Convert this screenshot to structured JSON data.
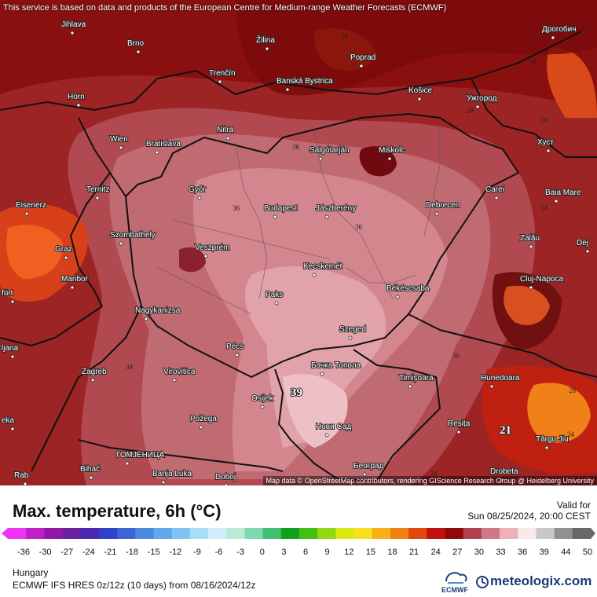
{
  "map": {
    "notice": "This service is based on data and products of the European Centre for Medium-range Weather Forecasts (ECMWF)",
    "attribution": "Map data © OpenStreetMap contributors, rendering GIScience Research Group @ Heidelberg University",
    "cities": [
      "Jihlava",
      "Brno",
      "Žilina",
      "Poprad",
      "Дрогобич",
      "Trenčín",
      "Banská Bystrica",
      "Košice",
      "Ужгород",
      "Horn",
      "Wien",
      "Bratislava",
      "Nitra",
      "Salgótarján",
      "Miskolc",
      "Хуст",
      "Ternitz",
      "Győr",
      "Budapest",
      "Jászberény",
      "Debrecen",
      "Carei",
      "Baia Mare",
      "Eisenerz",
      "Szombathely",
      "Veszprém",
      "Zalău",
      "Graz",
      "Kecskemét",
      "Cluj-Napoca",
      "Maribor",
      "Paks",
      "Békéscsaba",
      "Nagykanizsa",
      "Szeged",
      "Pécs",
      "Zagreb",
      "Virovitica",
      "Бачка Топола",
      "Timișoara",
      "Hunedoara",
      "Osijek",
      "Požega",
      "Нови Сад",
      "Reșița",
      "Târgu Jiu",
      "Bihać",
      "ГОМЈЕНИЦА",
      "Banja Luka",
      "Doboj",
      "Београд",
      "Drobeta",
      "Dej",
      "Rab",
      "fürt",
      "ljana",
      "eka"
    ],
    "contour_labels": [
      "28",
      "34",
      "36",
      "36",
      "36",
      "34",
      "34",
      "36",
      "39",
      "21",
      "24",
      "28",
      "28",
      "36",
      "34"
    ]
  },
  "footer": {
    "title": "Max. temperature, 6h (°C)",
    "valid_label": "Valid for",
    "valid_date": "Sun 08/25/2024, 20:00 CEST",
    "region": "Hungary",
    "model": "ECMWF IFS HRES 0z/12z (10 days) from  08/16/2024/12z",
    "ecmwf_label": "ECMWF",
    "brand": "meteologix.com"
  },
  "scale": {
    "ticks": [
      "-36",
      "-30",
      "-27",
      "-24",
      "-21",
      "-18",
      "-15",
      "-12",
      "-9",
      "-6",
      "-3",
      "0",
      "3",
      "6",
      "9",
      "12",
      "15",
      "18",
      "21",
      "24",
      "27",
      "30",
      "33",
      "36",
      "39",
      "44",
      "50"
    ],
    "colors": [
      "#f034f5",
      "#c020c8",
      "#9018a8",
      "#6a20a0",
      "#4a2ab0",
      "#3040c8",
      "#3a64d8",
      "#4a88e0",
      "#60a8ec",
      "#80c4f4",
      "#a8dcf8",
      "#d0eefa",
      "#b8ecd8",
      "#80d8b0",
      "#40c070",
      "#10a020",
      "#40c010",
      "#90d810",
      "#d8e810",
      "#f8e020",
      "#f8b018",
      "#f08010",
      "#e04810",
      "#c01010",
      "#900808",
      "#b04050",
      "#d07888",
      "#f0b0b8",
      "#f8e8e8",
      "#c8c8c8",
      "#909090",
      "#686868"
    ]
  },
  "colors": {
    "hot_dark": "#8a1010",
    "hot_mid": "#a83838",
    "hot_pink": "#c8707a",
    "hot_light": "#e8a8b0",
    "orange": "#e8581a",
    "border": "#111111",
    "brand": "#1a3c78"
  }
}
